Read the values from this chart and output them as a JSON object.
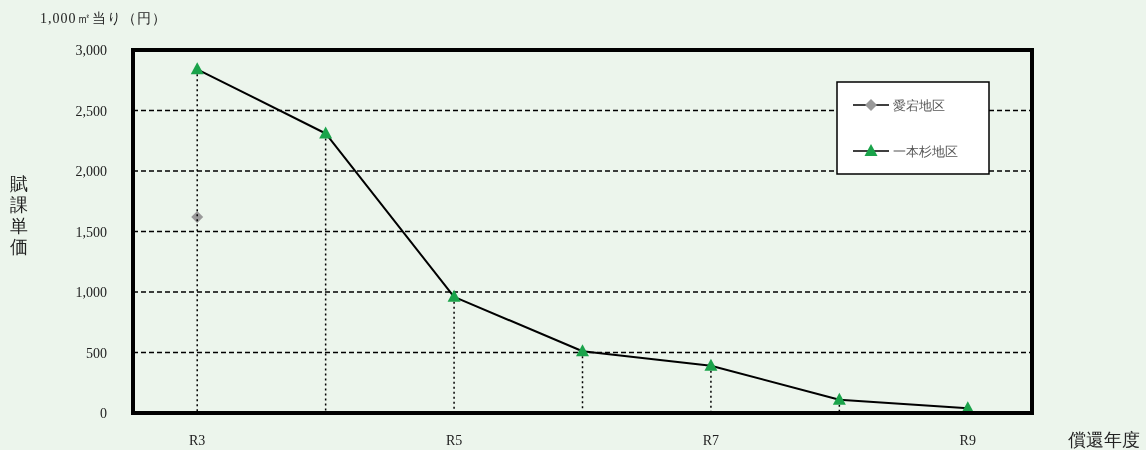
{
  "chart_data": {
    "type": "line",
    "ylabel": "賦課単価",
    "xlabel": "償還年度",
    "annotations": [
      "1,000㎡当り（円）"
    ],
    "categories": [
      "R3",
      null,
      "R5",
      null,
      "R7",
      null,
      "R9"
    ],
    "series": [
      {
        "name": "愛宕地区",
        "color": "#000000",
        "colors": [
          "#999999",
          null,
          null,
          null,
          null,
          null,
          null
        ],
        "marker": "diamond",
        "values": [
          1620,
          null,
          null,
          null,
          null,
          null,
          null
        ]
      },
      {
        "name": "一本杉地区",
        "color": "#000000",
        "colors": [
          "#1aa34a",
          "#1aa34a",
          "#1aa34a",
          "#1aa34a",
          "#1aa34a",
          "#1aa34a",
          "#1aa34a"
        ],
        "marker": "triangle",
        "values": [
          2840,
          2310,
          960,
          510,
          390,
          110,
          40
        ],
        "errors": [
          [
            0,
            2840
          ],
          [
            0,
            2310
          ],
          [
            0,
            960
          ],
          [
            0,
            510
          ],
          [
            0,
            390
          ],
          [
            0,
            110
          ],
          [
            0,
            40
          ]
        ]
      }
    ],
    "ylim": [
      0,
      3000
    ],
    "yticks": [
      {
        "value": 0,
        "label": "0"
      },
      {
        "value": 500,
        "label": "500"
      },
      {
        "value": 1000,
        "label": "1,000"
      },
      {
        "value": 1500,
        "label": "1,500"
      },
      {
        "value": 2000,
        "label": "2,000"
      },
      {
        "value": 2500,
        "label": "2,500"
      },
      {
        "value": 3000,
        "label": "3,000"
      }
    ],
    "grid": "y",
    "legend": "top right",
    "line_style": "solid"
  }
}
